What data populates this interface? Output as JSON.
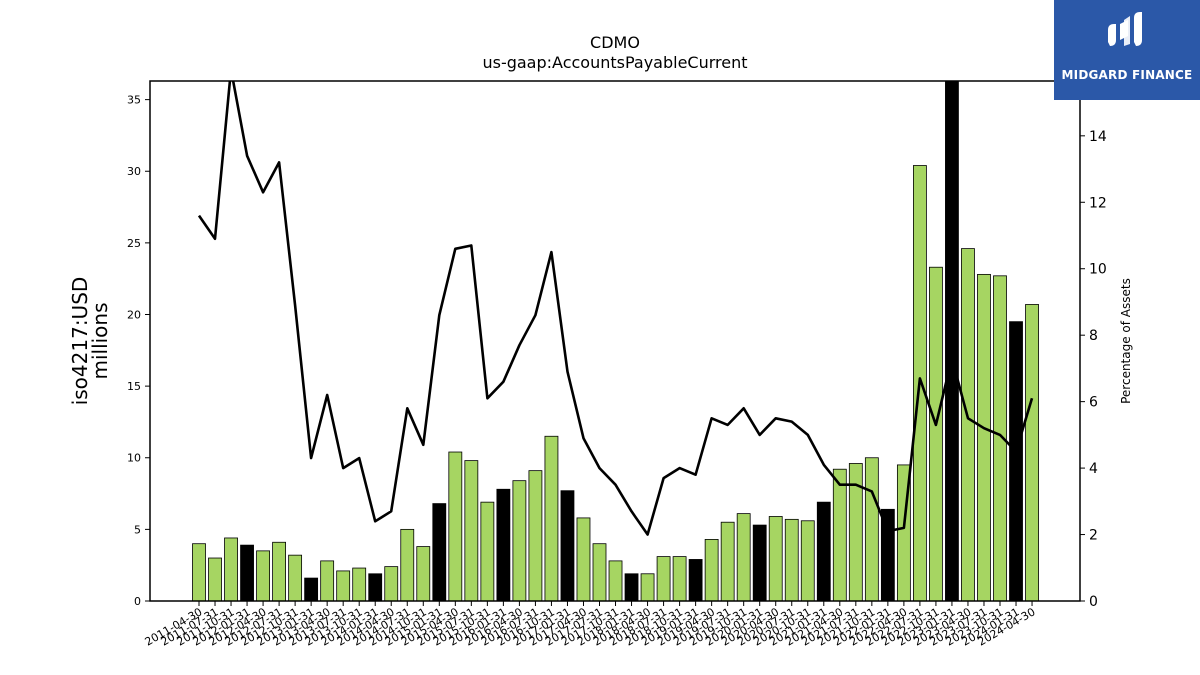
{
  "chart_data": {
    "type": "bar",
    "title": "CDMO",
    "subtitle": "us-gaap:AccountsPayableCurrent",
    "ylabel_left": [
      "iso4217:USD",
      "millions"
    ],
    "ylabel_right": "Percentage of Assets",
    "ylim_left": [
      0,
      36.3
    ],
    "ylim_right": [
      0,
      15.65
    ],
    "yticks_left": [
      0,
      5,
      10,
      15,
      20,
      25,
      30,
      35
    ],
    "yticks_right": [
      0,
      2,
      4,
      6,
      8,
      10,
      12,
      14
    ],
    "categories": [
      "2011-04-30",
      "2011-07-31",
      "2011-10-31",
      "2012-01-31",
      "2012-04-30",
      "2012-07-31",
      "2012-10-31",
      "2013-01-31",
      "2013-04-30",
      "2013-07-31",
      "2013-10-31",
      "2014-01-31",
      "2014-04-30",
      "2014-07-31",
      "2014-10-31",
      "2015-01-31",
      "2015-04-30",
      "2015-07-31",
      "2015-10-31",
      "2016-01-31",
      "2016-04-30",
      "2016-07-31",
      "2016-10-31",
      "2017-01-31",
      "2017-04-30",
      "2017-07-31",
      "2017-10-31",
      "2018-01-31",
      "2018-04-30",
      "2018-07-31",
      "2018-10-31",
      "2019-01-31",
      "2019-04-30",
      "2019-07-31",
      "2019-10-31",
      "2020-01-31",
      "2020-04-30",
      "2020-07-31",
      "2020-10-31",
      "2021-01-31",
      "2021-04-30",
      "2021-07-31",
      "2021-10-31",
      "2022-01-31",
      "2022-04-30",
      "2022-07-31",
      "2022-10-31",
      "2023-01-31",
      "2023-04-30",
      "2023-07-31",
      "2023-10-31",
      "2024-01-31",
      "2024-04-30"
    ],
    "series": [
      {
        "type": "bar",
        "axis": "left",
        "values": [
          4.0,
          3.0,
          4.4,
          3.9,
          3.5,
          4.1,
          3.2,
          1.6,
          2.8,
          2.1,
          2.3,
          1.9,
          2.4,
          5.0,
          3.8,
          6.8,
          10.4,
          9.8,
          6.9,
          7.8,
          8.4,
          9.1,
          11.5,
          7.7,
          5.8,
          4.0,
          2.8,
          1.9,
          1.9,
          3.1,
          3.1,
          2.9,
          4.3,
          5.5,
          6.1,
          5.3,
          5.9,
          5.7,
          5.6,
          6.9,
          9.2,
          9.6,
          10.0,
          6.4,
          9.5,
          30.4,
          23.3,
          36.3,
          24.6,
          22.8,
          22.7,
          19.5,
          20.7
        ],
        "highlight": [
          false,
          false,
          false,
          true,
          false,
          false,
          false,
          true,
          false,
          false,
          false,
          true,
          false,
          false,
          false,
          true,
          false,
          false,
          false,
          true,
          false,
          false,
          false,
          true,
          false,
          false,
          false,
          true,
          false,
          false,
          false,
          true,
          false,
          false,
          false,
          true,
          false,
          false,
          false,
          true,
          false,
          false,
          false,
          true,
          false,
          false,
          false,
          true,
          false,
          false,
          false,
          true,
          false
        ]
      },
      {
        "type": "line",
        "axis": "right",
        "values": [
          11.6,
          10.9,
          16.0,
          13.4,
          12.3,
          13.2,
          8.9,
          4.3,
          6.2,
          4.0,
          4.3,
          2.4,
          2.7,
          5.8,
          4.7,
          8.6,
          10.6,
          10.7,
          6.1,
          6.6,
          7.7,
          8.6,
          10.5,
          6.9,
          4.9,
          4.0,
          3.5,
          2.7,
          2.0,
          3.7,
          4.0,
          3.8,
          5.5,
          5.3,
          5.8,
          5.0,
          5.5,
          5.4,
          5.0,
          4.1,
          3.5,
          3.5,
          3.3,
          2.1,
          2.2,
          6.7,
          5.3,
          7.3,
          5.5,
          5.2,
          5.0,
          4.5,
          6.1
        ]
      }
    ],
    "colors": {
      "bar": "#a6d562",
      "bar_highlight": "#000000",
      "line": "#000000",
      "bar_edge": "#000000"
    }
  },
  "logo": {
    "text": "MIDGARD FINANCE",
    "background": "#2b58a8"
  }
}
